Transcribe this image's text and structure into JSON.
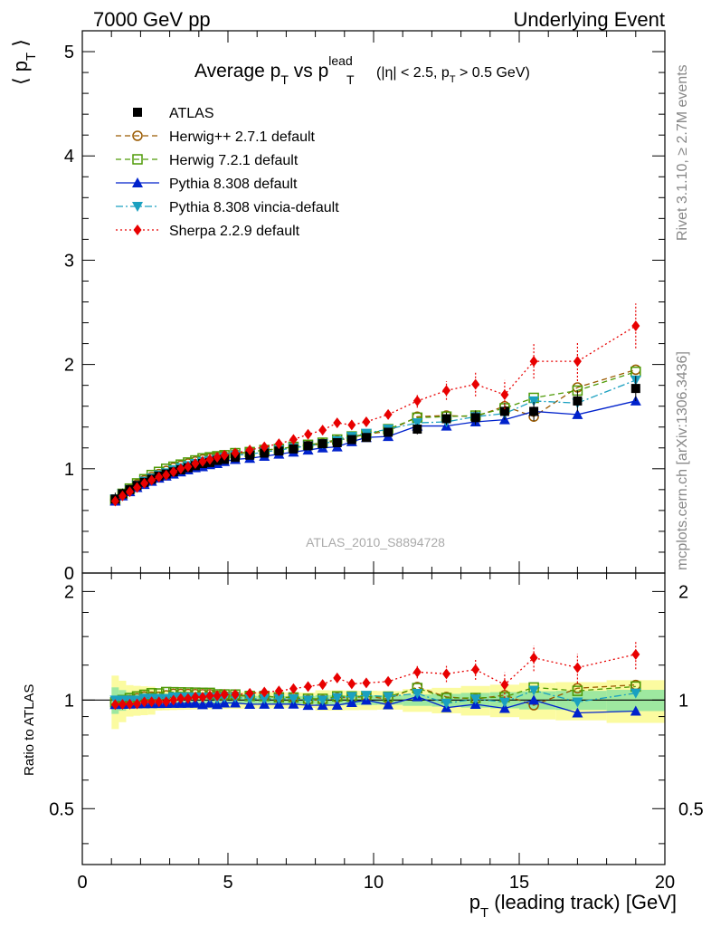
{
  "header": {
    "left": "7000 GeV pp",
    "right": "Underlying Event"
  },
  "side_labels": {
    "rivet": "Rivet 3.1.10, ≥ 2.7M events",
    "mcplots": "mcplots.cern.ch [arXiv:1306.3436]"
  },
  "chart_data": {
    "type": "scatter",
    "title": {
      "main": "Average p",
      "sub_t": "T",
      "vs": " vs p",
      "sup_lead": "lead",
      "cut": "(|η| < 2.5, p",
      "cut_sub": "T",
      "cut_end": " > 0.5 GeV)"
    },
    "watermark": "ATLAS_2010_S8894728",
    "xlabel": "p",
    "xlabel_sub": "T",
    "xlabel_rest": " (leading track) [GeV]",
    "ylabel": "⟨ p",
    "ylabel_sub": "T",
    "ylabel_end": " ⟩",
    "ratio_ylabel": "Ratio to ATLAS",
    "xlim": [
      0,
      20
    ],
    "ylim": [
      0,
      5.2
    ],
    "ratio_ylim": [
      0.35,
      2.25
    ],
    "x_ticks": [
      "0",
      "5",
      "10",
      "15",
      "20"
    ],
    "y_ticks": [
      "1",
      "2",
      "3",
      "4",
      "5"
    ],
    "ratio_ticks": [
      "0.5",
      "1",
      "2"
    ],
    "x": [
      1.13,
      1.38,
      1.63,
      1.88,
      2.13,
      2.38,
      2.63,
      2.88,
      3.13,
      3.38,
      3.63,
      3.88,
      4.13,
      4.38,
      4.63,
      4.88,
      5.25,
      5.75,
      6.25,
      6.75,
      7.25,
      7.75,
      8.25,
      8.75,
      9.25,
      9.75,
      10.5,
      11.5,
      12.5,
      13.5,
      14.5,
      15.5,
      17.0,
      19.0
    ],
    "series": [
      {
        "name": "ATLAS",
        "color": "#000000",
        "marker": "square",
        "values": [
          0.71,
          0.76,
          0.8,
          0.84,
          0.87,
          0.9,
          0.93,
          0.95,
          0.97,
          0.99,
          1.01,
          1.03,
          1.05,
          1.06,
          1.08,
          1.09,
          1.11,
          1.13,
          1.15,
          1.17,
          1.19,
          1.22,
          1.24,
          1.25,
          1.28,
          1.3,
          1.35,
          1.38,
          1.48,
          1.49,
          1.55,
          1.55,
          1.65,
          1.77
        ],
        "band": [
          0.06,
          0.05,
          0.04,
          0.04,
          0.04,
          0.04,
          0.03,
          0.03,
          0.03,
          0.03,
          0.03,
          0.03,
          0.03,
          0.03,
          0.03,
          0.03,
          0.03,
          0.03,
          0.03,
          0.03,
          0.03,
          0.03,
          0.04,
          0.04,
          0.04,
          0.04,
          0.04,
          0.05,
          0.06,
          0.07,
          0.08,
          0.09,
          0.1,
          0.12
        ]
      },
      {
        "name": "Herwig++ 2.7.1 default",
        "color": "#9a5a00",
        "marker": "circle-open",
        "dash": "6,4",
        "values": [
          0.7,
          0.75,
          0.8,
          0.85,
          0.89,
          0.92,
          0.95,
          0.98,
          1.01,
          1.03,
          1.05,
          1.07,
          1.09,
          1.1,
          1.11,
          1.12,
          1.14,
          1.16,
          1.18,
          1.19,
          1.21,
          1.22,
          1.24,
          1.27,
          1.3,
          1.33,
          1.36,
          1.5,
          1.51,
          1.5,
          1.6,
          1.5,
          1.78,
          1.95
        ]
      },
      {
        "name": "Herwig 7.2.1 default",
        "color": "#4e9a06",
        "marker": "square-open",
        "dash": "6,4",
        "values": [
          0.7,
          0.76,
          0.81,
          0.86,
          0.9,
          0.94,
          0.97,
          1.0,
          1.02,
          1.04,
          1.06,
          1.08,
          1.1,
          1.11,
          1.12,
          1.13,
          1.15,
          1.16,
          1.18,
          1.19,
          1.21,
          1.23,
          1.25,
          1.28,
          1.31,
          1.33,
          1.38,
          1.49,
          1.5,
          1.51,
          1.58,
          1.68,
          1.75,
          1.93
        ]
      },
      {
        "name": "Pythia 8.308 default",
        "color": "#0022cc",
        "marker": "triangle-up",
        "dash": "",
        "values": [
          0.69,
          0.74,
          0.78,
          0.82,
          0.85,
          0.88,
          0.91,
          0.93,
          0.95,
          0.97,
          0.99,
          1.01,
          1.02,
          1.04,
          1.05,
          1.07,
          1.09,
          1.1,
          1.12,
          1.14,
          1.16,
          1.18,
          1.2,
          1.21,
          1.26,
          1.3,
          1.31,
          1.41,
          1.41,
          1.45,
          1.47,
          1.55,
          1.52,
          1.65
        ]
      },
      {
        "name": "Pythia 8.308 vincia-default",
        "color": "#1aa0c0",
        "marker": "triangle-down",
        "dash": "8,3,2,3",
        "values": [
          0.71,
          0.76,
          0.8,
          0.84,
          0.88,
          0.91,
          0.94,
          0.96,
          0.99,
          1.01,
          1.03,
          1.05,
          1.07,
          1.08,
          1.09,
          1.11,
          1.13,
          1.14,
          1.16,
          1.18,
          1.2,
          1.22,
          1.24,
          1.27,
          1.31,
          1.34,
          1.38,
          1.44,
          1.45,
          1.5,
          1.53,
          1.65,
          1.63,
          1.85
        ]
      },
      {
        "name": "Sherpa 2.2.9 default",
        "color": "#e80000",
        "marker": "diamond",
        "dash": "2,3",
        "values": [
          0.69,
          0.74,
          0.78,
          0.82,
          0.86,
          0.89,
          0.92,
          0.94,
          0.97,
          1.0,
          1.02,
          1.05,
          1.07,
          1.09,
          1.11,
          1.13,
          1.15,
          1.18,
          1.21,
          1.24,
          1.28,
          1.33,
          1.37,
          1.44,
          1.42,
          1.45,
          1.52,
          1.65,
          1.75,
          1.81,
          1.71,
          2.03,
          2.03,
          2.37
        ]
      }
    ],
    "legend_position": "top-left"
  }
}
